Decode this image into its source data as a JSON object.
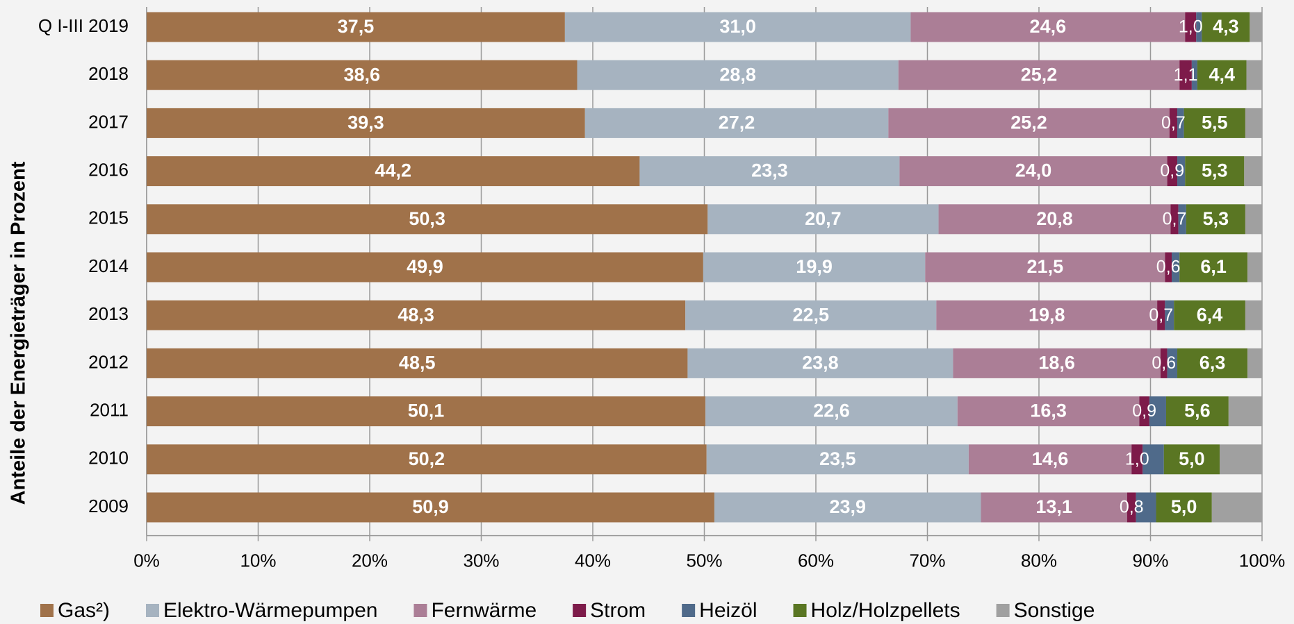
{
  "chart_data": {
    "type": "stacked_bar_horizontal",
    "y_axis_label": "Anteile der Energieträger in Prozent",
    "categories": [
      "Q I-III 2019",
      "2018",
      "2017",
      "2016",
      "2015",
      "2014",
      "2013",
      "2012",
      "2011",
      "2010",
      "2009"
    ],
    "series": [
      {
        "name": "Gas²)",
        "color": "#a0724a",
        "values": [
          37.5,
          38.6,
          39.3,
          44.2,
          50.3,
          49.9,
          48.3,
          48.5,
          50.1,
          50.2,
          50.9
        ],
        "value_labels": [
          "37,5",
          "38,6",
          "39,3",
          "44,2",
          "50,3",
          "49,9",
          "48,3",
          "48,5",
          "50,1",
          "50,2",
          "50,9"
        ]
      },
      {
        "name": "Elektro-Wärmepumpen",
        "color": "#a6b3c0",
        "values": [
          31.0,
          28.8,
          27.2,
          23.3,
          20.7,
          19.9,
          22.5,
          23.8,
          22.6,
          23.5,
          23.9
        ],
        "value_labels": [
          "31,0",
          "28,8",
          "27,2",
          "23,3",
          "20,7",
          "19,9",
          "22,5",
          "23,8",
          "22,6",
          "23,5",
          "23,9"
        ]
      },
      {
        "name": "Fernwärme",
        "color": "#ab7e96",
        "values": [
          24.6,
          25.2,
          25.2,
          24.0,
          20.8,
          21.5,
          19.8,
          18.6,
          16.3,
          14.6,
          13.1
        ],
        "value_labels": [
          "24,6",
          "25,2",
          "25,2",
          "24,0",
          "20,8",
          "21,5",
          "19,8",
          "18,6",
          "16,3",
          "14,6",
          "13,1"
        ]
      },
      {
        "name": "Strom",
        "color": "#7d1b4a",
        "values": [
          1.0,
          1.1,
          0.7,
          0.9,
          0.7,
          0.6,
          0.7,
          0.6,
          0.9,
          1.0,
          0.8
        ],
        "value_labels": [
          "1,0",
          "1,1",
          "0,7",
          "0,9",
          "0,7",
          "0,6",
          "0,7",
          "0,6",
          "0,9",
          "1,0",
          "0,8"
        ]
      },
      {
        "name": "Heizöl",
        "color": "#4f6a8a",
        "values": [
          0.5,
          0.5,
          0.6,
          0.7,
          0.7,
          0.7,
          0.8,
          0.9,
          1.5,
          1.9,
          1.8
        ]
      },
      {
        "name": "Holz/Holzpellets",
        "color": "#5a7623",
        "values": [
          4.3,
          4.4,
          5.5,
          5.3,
          5.3,
          6.1,
          6.4,
          6.3,
          5.6,
          5.0,
          5.0
        ],
        "value_labels": [
          "4,3",
          "4,4",
          "5,5",
          "5,3",
          "5,3",
          "6,1",
          "6,4",
          "6,3",
          "5,6",
          "5,0",
          "5,0"
        ]
      },
      {
        "name": "Sonstige",
        "color": "#a0a0a0",
        "values": [
          1.1,
          1.4,
          1.5,
          1.6,
          1.5,
          1.3,
          1.5,
          1.3,
          3.0,
          3.8,
          4.5
        ]
      }
    ],
    "xlim": [
      0,
      100
    ],
    "xticks": [
      {
        "value": 0,
        "label": "0%"
      },
      {
        "value": 10,
        "label": "10%"
      },
      {
        "value": 20,
        "label": "20%"
      },
      {
        "value": 30,
        "label": "30%"
      },
      {
        "value": 40,
        "label": "40%"
      },
      {
        "value": 50,
        "label": "50%"
      },
      {
        "value": 60,
        "label": "60%"
      },
      {
        "value": 70,
        "label": "70%"
      },
      {
        "value": 80,
        "label": "80%"
      },
      {
        "value": 90,
        "label": "90%"
      },
      {
        "value": 100,
        "label": "100%"
      }
    ],
    "grid": true,
    "legend": "bottom"
  }
}
